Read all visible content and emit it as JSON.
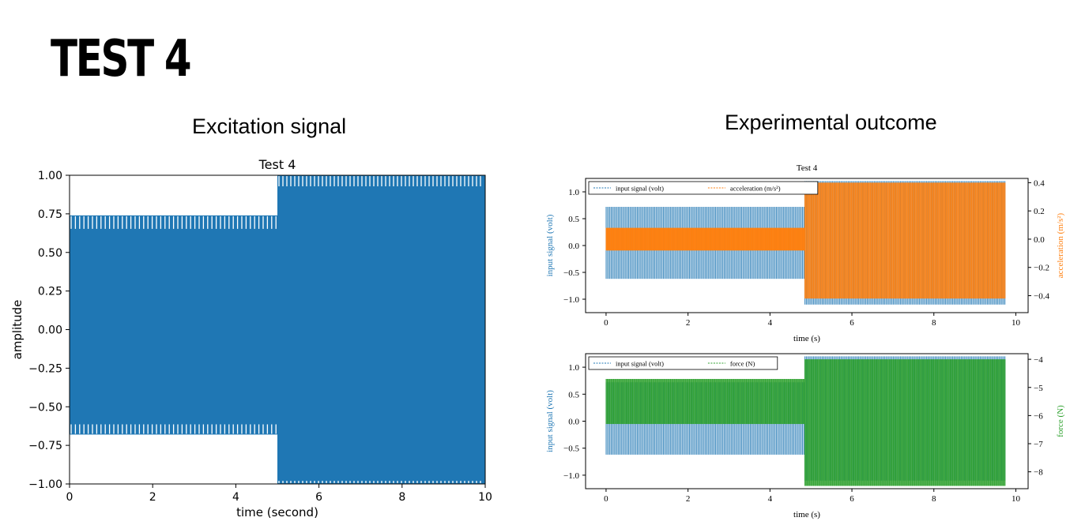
{
  "slide": {
    "title": "TEST 4",
    "left_heading": "Excitation signal",
    "right_heading": "Experimental outcome"
  },
  "colors": {
    "blue": "#1f77b4",
    "orange": "#ff7f0e",
    "green": "#2ca02c"
  },
  "chart_data": [
    {
      "type": "area",
      "title": "Test 4",
      "xlabel": "time (second)",
      "ylabel": "amplitude",
      "xlim": [
        0,
        10
      ],
      "ylim": [
        -1.0,
        1.0
      ],
      "xticks": [
        "0",
        "2",
        "4",
        "6",
        "8",
        "10"
      ],
      "yticks": [
        "1.00",
        "0.75",
        "0.50",
        "0.25",
        "0.00",
        "−0.25",
        "−0.50",
        "−0.75",
        "−1.00"
      ],
      "series": [
        {
          "color": "#1f77b4",
          "segments": [
            {
              "x_start": 0,
              "x_end": 5,
              "min": -0.68,
              "max": 0.74
            },
            {
              "x_start": 5,
              "x_end": 10,
              "min": -1.0,
              "max": 1.0
            }
          ]
        }
      ]
    },
    {
      "type": "line",
      "title": "Test 4",
      "xlabel": "time (s)",
      "ylabel": "input signal (volt)",
      "ylabel_right": "acceleration (m/s²)",
      "xlim": [
        -0.5,
        10.3
      ],
      "ylim": [
        -1.25,
        1.25
      ],
      "ylim_right": [
        -0.52,
        0.43
      ],
      "xticks": [
        "0",
        "2",
        "4",
        "6",
        "8",
        "10"
      ],
      "yticks": [
        "1.0",
        "0.5",
        "0.0",
        "−0.5",
        "−1.0"
      ],
      "yticks_right": [
        "0.4",
        "0.2",
        "0.0",
        "−0.2",
        "−0.4"
      ],
      "legend": "top-left",
      "series": [
        {
          "name": "input signal (volt)",
          "axis": "left",
          "color": "#1f77b4",
          "segments": [
            {
              "x_start": 0,
              "x_end": 4.85,
              "min": -0.62,
              "max": 0.72
            },
            {
              "x_start": 4.85,
              "x_end": 9.75,
              "min": -1.1,
              "max": 1.2
            }
          ]
        },
        {
          "name": "acceleration (m/s²)",
          "axis": "right",
          "color": "#ff7f0e",
          "segments": [
            {
              "x_start": 0,
              "x_end": 4.85,
              "min": -0.08,
              "max": 0.08
            },
            {
              "x_start": 4.85,
              "x_end": 9.75,
              "min": -0.42,
              "max": 0.4
            }
          ]
        }
      ]
    },
    {
      "type": "line",
      "title": "",
      "xlabel": "time (s)",
      "ylabel": "input signal (volt)",
      "ylabel_right": "force (N)",
      "xlim": [
        -0.5,
        10.3
      ],
      "ylim": [
        -1.25,
        1.25
      ],
      "ylim_right": [
        -8.6,
        -3.8
      ],
      "xticks": [
        "0",
        "2",
        "4",
        "6",
        "8",
        "10"
      ],
      "yticks": [
        "1.0",
        "0.5",
        "0.0",
        "−0.5",
        "−1.0"
      ],
      "yticks_right": [
        "−4",
        "−5",
        "−6",
        "−7",
        "−8"
      ],
      "legend": "top-left",
      "series": [
        {
          "name": "input signal (volt)",
          "axis": "left",
          "color": "#1f77b4",
          "segments": [
            {
              "x_start": 0,
              "x_end": 4.85,
              "min": -0.62,
              "max": 0.72
            },
            {
              "x_start": 4.85,
              "x_end": 9.75,
              "min": -1.1,
              "max": 1.2
            }
          ]
        },
        {
          "name": "force (N)",
          "axis": "right",
          "color": "#2ca02c",
          "segments": [
            {
              "x_start": 0,
              "x_end": 4.85,
              "min": -6.3,
              "max": -4.7
            },
            {
              "x_start": 4.85,
              "x_end": 9.75,
              "min": -8.5,
              "max": -4.0
            }
          ]
        }
      ]
    }
  ]
}
